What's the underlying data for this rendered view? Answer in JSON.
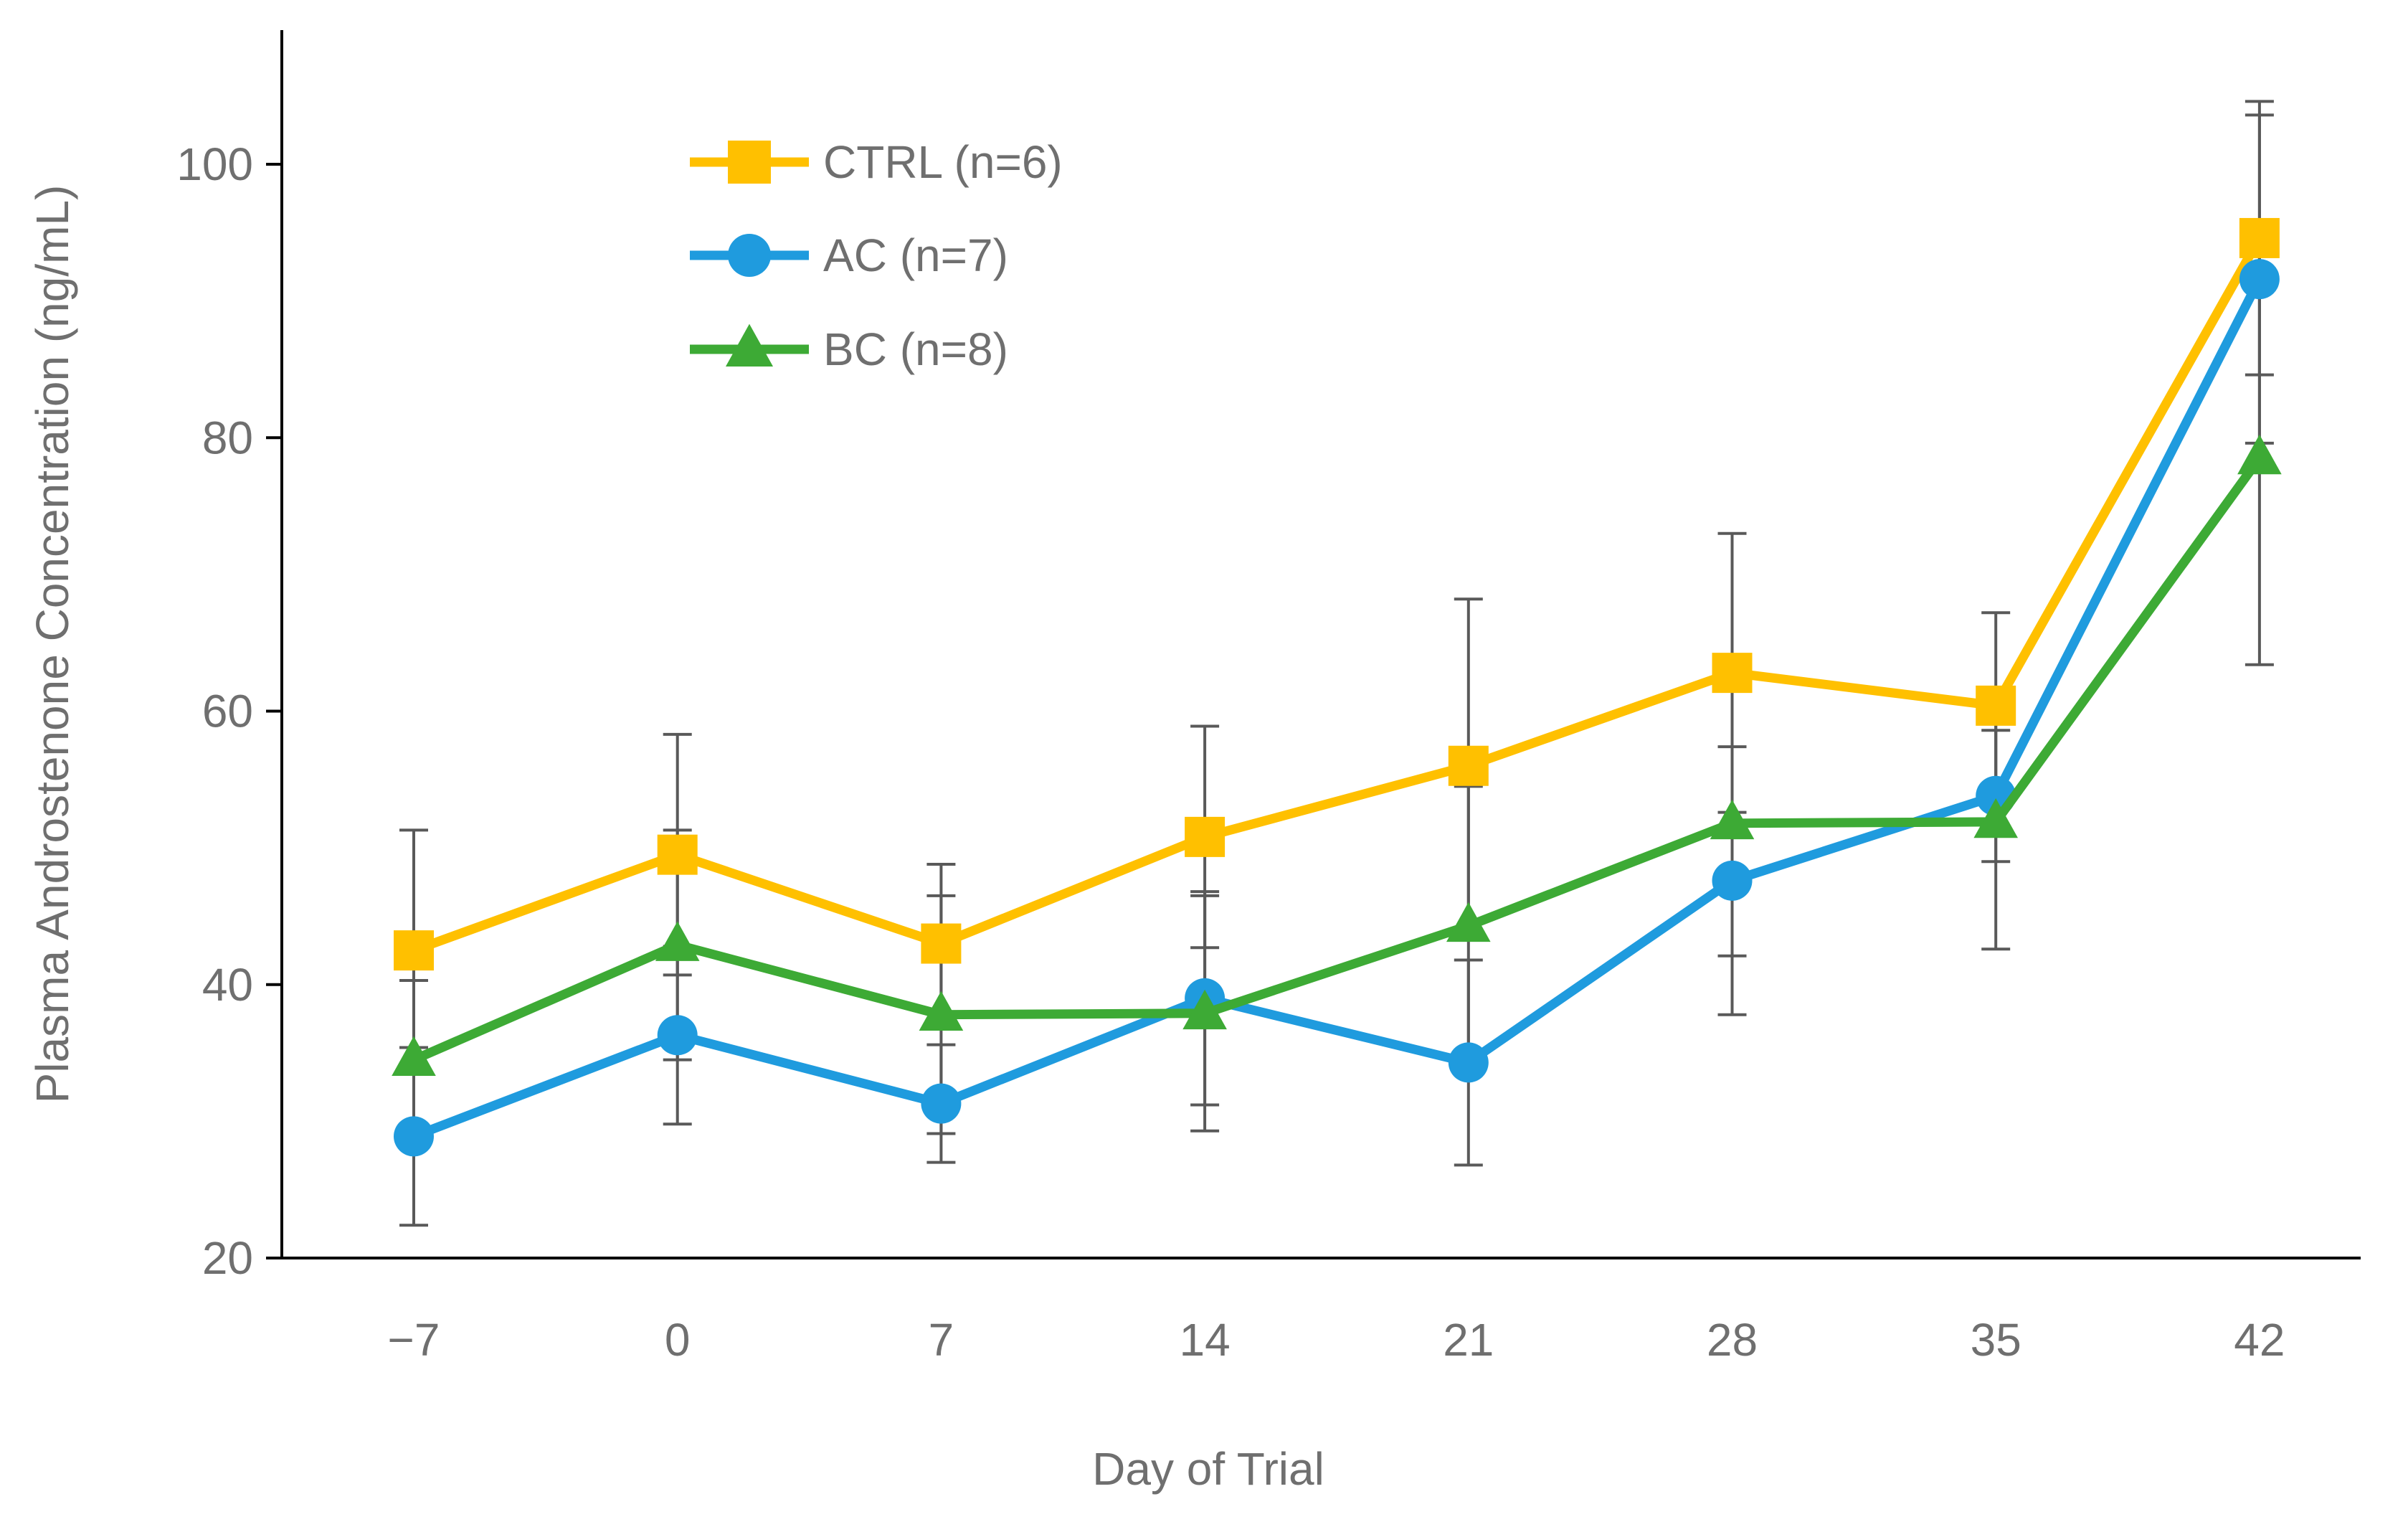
{
  "chart_data": {
    "type": "line",
    "title": "",
    "xlabel": "Day of Trial",
    "ylabel": "Plasma Androstenone Concentration (ng/mL)",
    "ylim": [
      20,
      100
    ],
    "y_ticks": [
      "20",
      "40",
      "60",
      "80",
      "100"
    ],
    "x": [
      "−7",
      "0",
      "7",
      "14",
      "21",
      "28",
      "35",
      "42"
    ],
    "grid": false,
    "legend_position": "top-left",
    "series": [
      {
        "name": "CTRL (n=6)",
        "color": "#FFC000",
        "marker": "square",
        "values": [
          42.5,
          49.5,
          43.0,
          50.8,
          56.0,
          62.8,
          60.4,
          94.6
        ],
        "error": [
          8.8,
          8.8,
          5.8,
          8.1,
          12.2,
          10.2,
          6.8,
          10.0
        ]
      },
      {
        "name": "AC (n=7)",
        "color": "#1F9BDE",
        "marker": "circle",
        "values": [
          28.9,
          36.3,
          31.3,
          39.0,
          34.3,
          47.6,
          53.8,
          91.6
        ],
        "error": [
          6.5,
          6.5,
          4.3,
          7.8,
          7.5,
          9.8,
          4.8,
          12.0
        ]
      },
      {
        "name": "BC (n=8)",
        "color": "#3DAA35",
        "marker": "triangle",
        "values": [
          34.5,
          42.9,
          37.8,
          37.9,
          44.3,
          51.8,
          51.9,
          78.5
        ],
        "error": [
          5.8,
          8.4,
          8.7,
          8.6,
          10.2,
          9.7,
          9.3,
          15.1
        ]
      }
    ]
  }
}
